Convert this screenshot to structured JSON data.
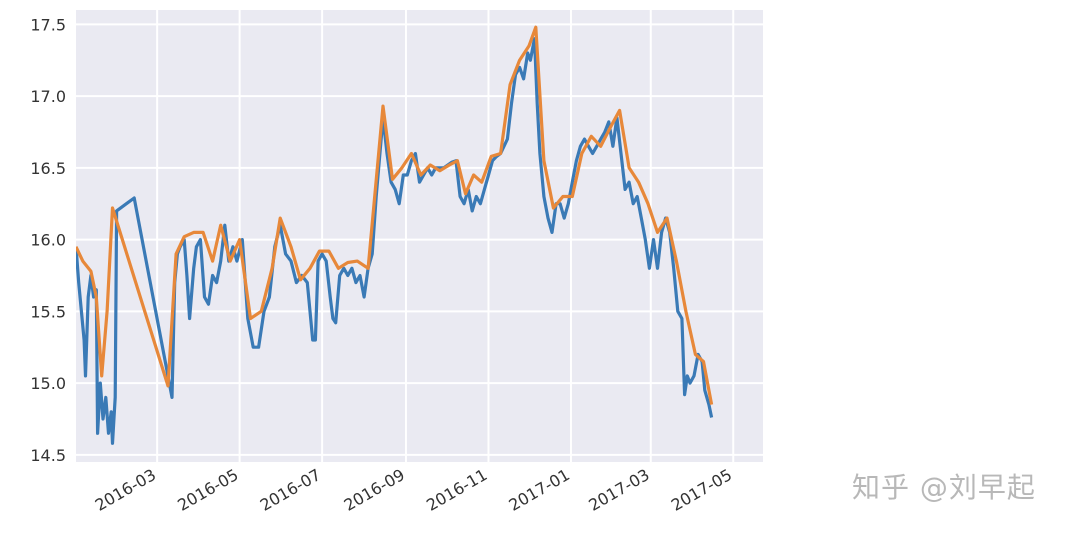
{
  "chart_data": {
    "type": "line",
    "title": "",
    "xlabel": "",
    "ylabel": "",
    "xlim": [
      "2016-01-01",
      "2017-05-23"
    ],
    "ylim": [
      14.45,
      17.6
    ],
    "grid": true,
    "x_ticks": [
      "2016-03",
      "2016-05",
      "2016-07",
      "2016-09",
      "2016-11",
      "2017-01",
      "2017-03",
      "2017-05"
    ],
    "y_ticks": [
      "14.5",
      "15.0",
      "15.5",
      "16.0",
      "16.5",
      "17.0",
      "17.5"
    ],
    "colors": {
      "background": "#eaeaf2",
      "grid": "#ffffff",
      "series_1": "#3a7ab6",
      "series_2": "#e7883a"
    },
    "series": [
      {
        "points": [
          [
            "2016-01-01",
            15.95
          ],
          [
            "2016-01-03",
            15.7
          ],
          [
            "2016-01-05",
            15.5
          ],
          [
            "2016-01-07",
            15.3
          ],
          [
            "2016-01-08",
            15.05
          ],
          [
            "2016-01-10",
            15.6
          ],
          [
            "2016-01-12",
            15.75
          ],
          [
            "2016-01-14",
            15.6
          ],
          [
            "2016-01-16",
            15.65
          ],
          [
            "2016-01-17",
            14.65
          ],
          [
            "2016-01-19",
            15.0
          ],
          [
            "2016-01-21",
            14.75
          ],
          [
            "2016-01-23",
            14.9
          ],
          [
            "2016-01-25",
            14.65
          ],
          [
            "2016-01-27",
            14.8
          ],
          [
            "2016-01-28",
            14.58
          ],
          [
            "2016-01-30",
            14.9
          ],
          [
            "2016-01-31",
            16.2
          ],
          [
            "2016-02-13",
            16.29
          ],
          [
            "2016-03-08",
            15.1
          ],
          [
            "2016-03-10",
            15.0
          ],
          [
            "2016-03-12",
            14.9
          ],
          [
            "2016-03-14",
            15.7
          ],
          [
            "2016-03-16",
            15.9
          ],
          [
            "2016-03-18",
            15.95
          ],
          [
            "2016-03-21",
            16.0
          ],
          [
            "2016-03-23",
            15.75
          ],
          [
            "2016-03-25",
            15.45
          ],
          [
            "2016-03-28",
            15.8
          ],
          [
            "2016-03-30",
            15.95
          ],
          [
            "2016-04-02",
            16.0
          ],
          [
            "2016-04-05",
            15.6
          ],
          [
            "2016-04-08",
            15.55
          ],
          [
            "2016-04-11",
            15.75
          ],
          [
            "2016-04-14",
            15.7
          ],
          [
            "2016-04-17",
            15.85
          ],
          [
            "2016-04-20",
            16.1
          ],
          [
            "2016-04-23",
            15.85
          ],
          [
            "2016-04-26",
            15.95
          ],
          [
            "2016-04-29",
            15.85
          ],
          [
            "2016-05-03",
            16.0
          ],
          [
            "2016-05-07",
            15.45
          ],
          [
            "2016-05-11",
            15.25
          ],
          [
            "2016-05-15",
            15.25
          ],
          [
            "2016-05-19",
            15.5
          ],
          [
            "2016-05-23",
            15.6
          ],
          [
            "2016-05-27",
            15.95
          ],
          [
            "2016-05-31",
            16.1
          ],
          [
            "2016-06-04",
            15.9
          ],
          [
            "2016-06-08",
            15.85
          ],
          [
            "2016-06-12",
            15.7
          ],
          [
            "2016-06-16",
            15.75
          ],
          [
            "2016-06-20",
            15.7
          ],
          [
            "2016-06-24",
            15.3
          ],
          [
            "2016-06-26",
            15.3
          ],
          [
            "2016-06-28",
            15.85
          ],
          [
            "2016-07-01",
            15.9
          ],
          [
            "2016-07-04",
            15.85
          ],
          [
            "2016-07-07",
            15.6
          ],
          [
            "2016-07-09",
            15.45
          ],
          [
            "2016-07-11",
            15.42
          ],
          [
            "2016-07-14",
            15.75
          ],
          [
            "2016-07-17",
            15.8
          ],
          [
            "2016-07-20",
            15.75
          ],
          [
            "2016-07-23",
            15.8
          ],
          [
            "2016-07-26",
            15.7
          ],
          [
            "2016-07-29",
            15.75
          ],
          [
            "2016-08-01",
            15.6
          ],
          [
            "2016-08-04",
            15.8
          ],
          [
            "2016-08-07",
            15.9
          ],
          [
            "2016-08-10",
            16.3
          ],
          [
            "2016-08-15",
            16.85
          ],
          [
            "2016-08-18",
            16.6
          ],
          [
            "2016-08-21",
            16.4
          ],
          [
            "2016-08-24",
            16.35
          ],
          [
            "2016-08-27",
            16.25
          ],
          [
            "2016-08-30",
            16.45
          ],
          [
            "2016-09-02",
            16.45
          ],
          [
            "2016-09-05",
            16.55
          ],
          [
            "2016-09-08",
            16.6
          ],
          [
            "2016-09-11",
            16.4
          ],
          [
            "2016-09-14",
            16.45
          ],
          [
            "2016-09-17",
            16.5
          ],
          [
            "2016-09-20",
            16.45
          ],
          [
            "2016-09-23",
            16.5
          ],
          [
            "2016-09-26",
            16.5
          ],
          [
            "2016-09-29",
            16.5
          ],
          [
            "2016-10-02",
            16.52
          ],
          [
            "2016-10-05",
            16.54
          ],
          [
            "2016-10-08",
            16.55
          ],
          [
            "2016-10-11",
            16.3
          ],
          [
            "2016-10-14",
            16.25
          ],
          [
            "2016-10-17",
            16.35
          ],
          [
            "2016-10-20",
            16.2
          ],
          [
            "2016-10-23",
            16.3
          ],
          [
            "2016-10-26",
            16.25
          ],
          [
            "2016-10-29",
            16.35
          ],
          [
            "2016-11-01",
            16.45
          ],
          [
            "2016-11-04",
            16.55
          ],
          [
            "2016-11-07",
            16.58
          ],
          [
            "2016-11-10",
            16.6
          ],
          [
            "2016-11-15",
            16.7
          ],
          [
            "2016-11-18",
            16.95
          ],
          [
            "2016-11-21",
            17.15
          ],
          [
            "2016-11-24",
            17.2
          ],
          [
            "2016-11-27",
            17.12
          ],
          [
            "2016-11-30",
            17.3
          ],
          [
            "2016-12-02",
            17.25
          ],
          [
            "2016-12-05",
            17.4
          ],
          [
            "2016-12-07",
            16.95
          ],
          [
            "2016-12-09",
            16.6
          ],
          [
            "2016-12-12",
            16.3
          ],
          [
            "2016-12-15",
            16.15
          ],
          [
            "2016-12-18",
            16.05
          ],
          [
            "2016-12-21",
            16.25
          ],
          [
            "2016-12-24",
            16.25
          ],
          [
            "2016-12-27",
            16.15
          ],
          [
            "2016-12-30",
            16.25
          ],
          [
            "2017-01-02",
            16.4
          ],
          [
            "2017-01-05",
            16.55
          ],
          [
            "2017-01-08",
            16.65
          ],
          [
            "2017-01-11",
            16.7
          ],
          [
            "2017-01-14",
            16.65
          ],
          [
            "2017-01-17",
            16.6
          ],
          [
            "2017-01-20",
            16.65
          ],
          [
            "2017-01-23",
            16.7
          ],
          [
            "2017-01-26",
            16.75
          ],
          [
            "2017-01-29",
            16.82
          ],
          [
            "2017-02-01",
            16.65
          ],
          [
            "2017-02-04",
            16.85
          ],
          [
            "2017-02-07",
            16.6
          ],
          [
            "2017-02-10",
            16.35
          ],
          [
            "2017-02-13",
            16.4
          ],
          [
            "2017-02-16",
            16.25
          ],
          [
            "2017-02-19",
            16.3
          ],
          [
            "2017-02-22",
            16.15
          ],
          [
            "2017-02-25",
            16.0
          ],
          [
            "2017-02-28",
            15.8
          ],
          [
            "2017-03-03",
            16.0
          ],
          [
            "2017-03-06",
            15.8
          ],
          [
            "2017-03-09",
            16.05
          ],
          [
            "2017-03-12",
            16.15
          ],
          [
            "2017-03-15",
            16.05
          ],
          [
            "2017-03-18",
            15.8
          ],
          [
            "2017-03-21",
            15.5
          ],
          [
            "2017-03-24",
            15.45
          ],
          [
            "2017-03-26",
            14.92
          ],
          [
            "2017-03-28",
            15.05
          ],
          [
            "2017-03-30",
            15.0
          ],
          [
            "2017-04-02",
            15.05
          ],
          [
            "2017-04-05",
            15.2
          ],
          [
            "2017-04-08",
            15.15
          ],
          [
            "2017-04-10",
            14.95
          ],
          [
            "2017-04-13",
            14.85
          ],
          [
            "2017-04-15",
            14.76
          ]
        ]
      },
      {
        "points": [
          [
            "2016-01-01",
            15.95
          ],
          [
            "2016-01-06",
            15.85
          ],
          [
            "2016-01-12",
            15.78
          ],
          [
            "2016-01-16",
            15.6
          ],
          [
            "2016-01-20",
            15.05
          ],
          [
            "2016-01-24",
            15.5
          ],
          [
            "2016-01-28",
            16.22
          ],
          [
            "2016-03-09",
            14.98
          ],
          [
            "2016-03-15",
            15.9
          ],
          [
            "2016-03-21",
            16.02
          ],
          [
            "2016-03-28",
            16.05
          ],
          [
            "2016-04-04",
            16.05
          ],
          [
            "2016-04-11",
            15.85
          ],
          [
            "2016-04-17",
            16.1
          ],
          [
            "2016-04-24",
            15.85
          ],
          [
            "2016-05-01",
            16.0
          ],
          [
            "2016-05-09",
            15.45
          ],
          [
            "2016-05-17",
            15.5
          ],
          [
            "2016-05-25",
            15.8
          ],
          [
            "2016-05-31",
            16.15
          ],
          [
            "2016-06-08",
            15.95
          ],
          [
            "2016-06-15",
            15.72
          ],
          [
            "2016-06-22",
            15.8
          ],
          [
            "2016-06-29",
            15.92
          ],
          [
            "2016-07-06",
            15.92
          ],
          [
            "2016-07-13",
            15.8
          ],
          [
            "2016-07-20",
            15.84
          ],
          [
            "2016-07-27",
            15.85
          ],
          [
            "2016-08-04",
            15.8
          ],
          [
            "2016-08-15",
            16.93
          ],
          [
            "2016-08-22",
            16.42
          ],
          [
            "2016-08-29",
            16.5
          ],
          [
            "2016-09-05",
            16.6
          ],
          [
            "2016-09-12",
            16.45
          ],
          [
            "2016-09-19",
            16.52
          ],
          [
            "2016-09-26",
            16.48
          ],
          [
            "2016-10-03",
            16.52
          ],
          [
            "2016-10-09",
            16.55
          ],
          [
            "2016-10-15",
            16.32
          ],
          [
            "2016-10-21",
            16.45
          ],
          [
            "2016-10-27",
            16.4
          ],
          [
            "2016-11-03",
            16.58
          ],
          [
            "2016-11-10",
            16.6
          ],
          [
            "2016-11-17",
            17.08
          ],
          [
            "2016-11-24",
            17.25
          ],
          [
            "2016-12-01",
            17.35
          ],
          [
            "2016-12-06",
            17.48
          ],
          [
            "2016-12-12",
            16.55
          ],
          [
            "2016-12-19",
            16.22
          ],
          [
            "2016-12-26",
            16.3
          ],
          [
            "2017-01-02",
            16.3
          ],
          [
            "2017-01-09",
            16.6
          ],
          [
            "2017-01-16",
            16.72
          ],
          [
            "2017-01-23",
            16.65
          ],
          [
            "2017-01-30",
            16.78
          ],
          [
            "2017-02-06",
            16.9
          ],
          [
            "2017-02-13",
            16.5
          ],
          [
            "2017-02-20",
            16.4
          ],
          [
            "2017-02-27",
            16.25
          ],
          [
            "2017-03-06",
            16.05
          ],
          [
            "2017-03-13",
            16.15
          ],
          [
            "2017-03-20",
            15.85
          ],
          [
            "2017-03-27",
            15.5
          ],
          [
            "2017-04-03",
            15.2
          ],
          [
            "2017-04-09",
            15.15
          ],
          [
            "2017-04-15",
            14.85
          ]
        ]
      }
    ]
  },
  "watermark": "知乎 @刘早起"
}
